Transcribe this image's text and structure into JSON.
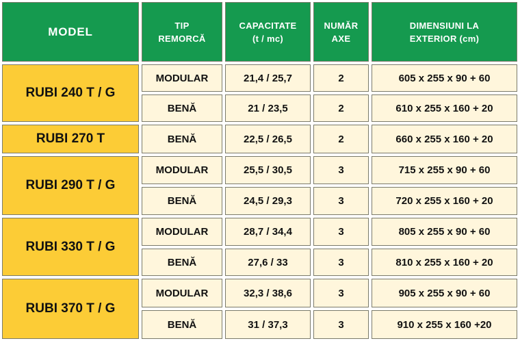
{
  "headers": {
    "model": "MODEL",
    "tip": "TIP\nREMORCĂ",
    "capacitate": "CAPACITATE\n(t / mc)",
    "axe": "NUMĂR\nAXE",
    "dimensiuni": "DIMENSIUNI LA\nEXTERIOR (cm)"
  },
  "models": [
    "RUBI 240 T / G",
    "RUBI 270 T",
    "RUBI 290 T / G",
    "RUBI 330 T / G",
    "RUBI 370 T / G"
  ],
  "rows": [
    {
      "tip": "MODULAR",
      "capacitate": "21,4 / 25,7",
      "axe": "2",
      "dim": "605 x 255 x 90 + 60"
    },
    {
      "tip": "BENĂ",
      "capacitate": "21 / 23,5",
      "axe": "2",
      "dim": "610 x 255 x 160 + 20"
    },
    {
      "tip": "BENĂ",
      "capacitate": "22,5 / 26,5",
      "axe": "2",
      "dim": "660 x 255 x 160 + 20"
    },
    {
      "tip": "MODULAR",
      "capacitate": "25,5 / 30,5",
      "axe": "3",
      "dim": "715 x 255 x 90 + 60"
    },
    {
      "tip": "BENĂ",
      "capacitate": "24,5 / 29,3",
      "axe": "3",
      "dim": "720 x 255 x 160 + 20"
    },
    {
      "tip": "MODULAR",
      "capacitate": "28,7 / 34,4",
      "axe": "3",
      "dim": "805 x 255 x 90 + 60"
    },
    {
      "tip": "BENĂ",
      "capacitate": "27,6 / 33",
      "axe": "3",
      "dim": "810 x 255 x 160 + 20"
    },
    {
      "tip": "MODULAR",
      "capacitate": "32,3 / 38,6",
      "axe": "3",
      "dim": "905 x 255 x 90 + 60"
    },
    {
      "tip": "BENĂ",
      "capacitate": "31 / 37,3",
      "axe": "3",
      "dim": "910 x 255 x 160 +20"
    }
  ],
  "colors": {
    "header_bg": "#159a4f",
    "header_text": "#ffffff",
    "model_bg": "#fccc36",
    "data_bg": "#fff6dc",
    "border": "#7a7a6a"
  }
}
